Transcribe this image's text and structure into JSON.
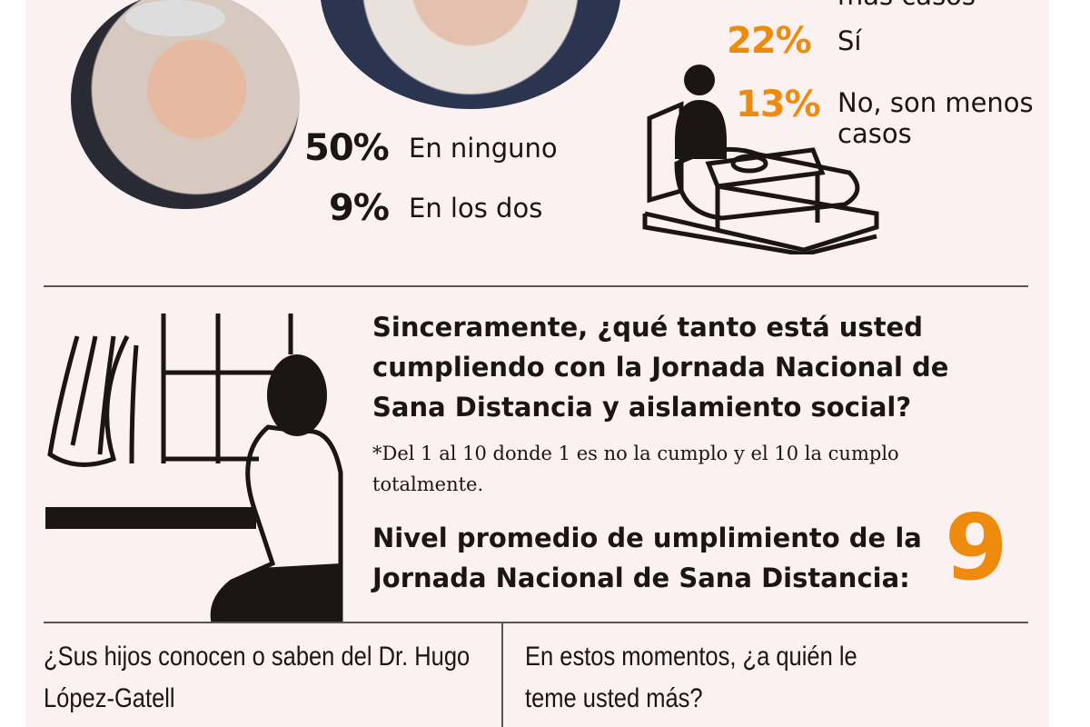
{
  "top_left": {
    "items": [
      {
        "pct": "50%",
        "label": "En ninguno"
      },
      {
        "pct": "9%",
        "label": "En los dos"
      }
    ]
  },
  "top_right": {
    "cut_label": "más casos",
    "items": [
      {
        "pct": "22%",
        "label": "Sí"
      },
      {
        "pct": "13%",
        "label": "No, son menos casos"
      }
    ]
  },
  "compliance": {
    "question": "Sinceramente, ¿qué tanto está usted cumpliendo con la Jornada Nacional de Sana Distancia y aislamiento social?",
    "note": "*Del 1 al 10 donde 1 es no la cumplo y el 10 la cumplo totalmente.",
    "result_label": "Nivel promedio de umplimiento de la Jornada Nacional de Sana Distancia:",
    "result_value": "9"
  },
  "bottom": {
    "left_question": "¿Sus hijos conocen o saben del Dr. Hugo López-Gatell",
    "right_question": "En estos momentos, ¿a quién le teme usted más?"
  },
  "colors": {
    "accent": "#ee8a0c",
    "background": "#fbf1f1",
    "ink": "#1b1515"
  }
}
